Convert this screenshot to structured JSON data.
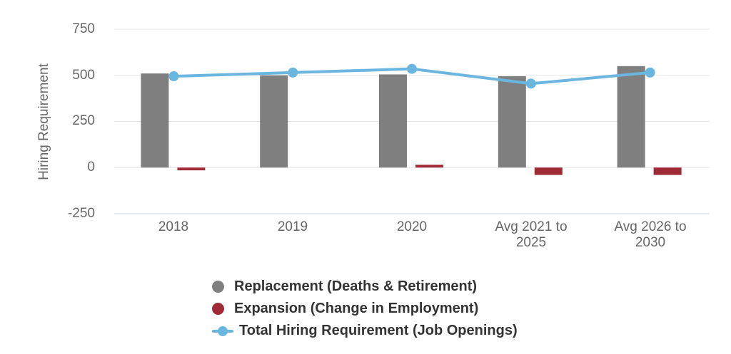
{
  "chart_data": {
    "type": "combo",
    "title": "",
    "ylabel": "Hiring Requirement",
    "ylim": [
      -250,
      750
    ],
    "ytick_values": [
      750,
      500,
      250,
      0,
      -250
    ],
    "ytick_labels": [
      "750",
      "500",
      "250",
      "0",
      "-250"
    ],
    "categories": [
      "2018",
      "2019",
      "2020",
      "Avg 2021 to\n2025",
      "Avg 2026 to\n2030"
    ],
    "series": [
      {
        "name": "Replacement (Deaths & Retirement)",
        "type": "bar",
        "color": "#7f7f7f",
        "values": [
          510,
          500,
          505,
          495,
          550
        ]
      },
      {
        "name": "Expansion (Change in Employment)",
        "type": "bar",
        "color": "#a02a35",
        "values": [
          -15,
          0,
          15,
          -40,
          -40
        ]
      },
      {
        "name": "Total Hiring Requirement (Job Openings)",
        "type": "line",
        "color": "#6bb6de",
        "values": [
          495,
          515,
          535,
          455,
          515
        ]
      }
    ],
    "grid": true,
    "legend_position": "bottom",
    "gridline_color": "#e6e6e6",
    "axis_line_color": "#ccd6eb",
    "text_color": "#666666",
    "legend_text_color": "#333333",
    "background": "#ffffff"
  }
}
